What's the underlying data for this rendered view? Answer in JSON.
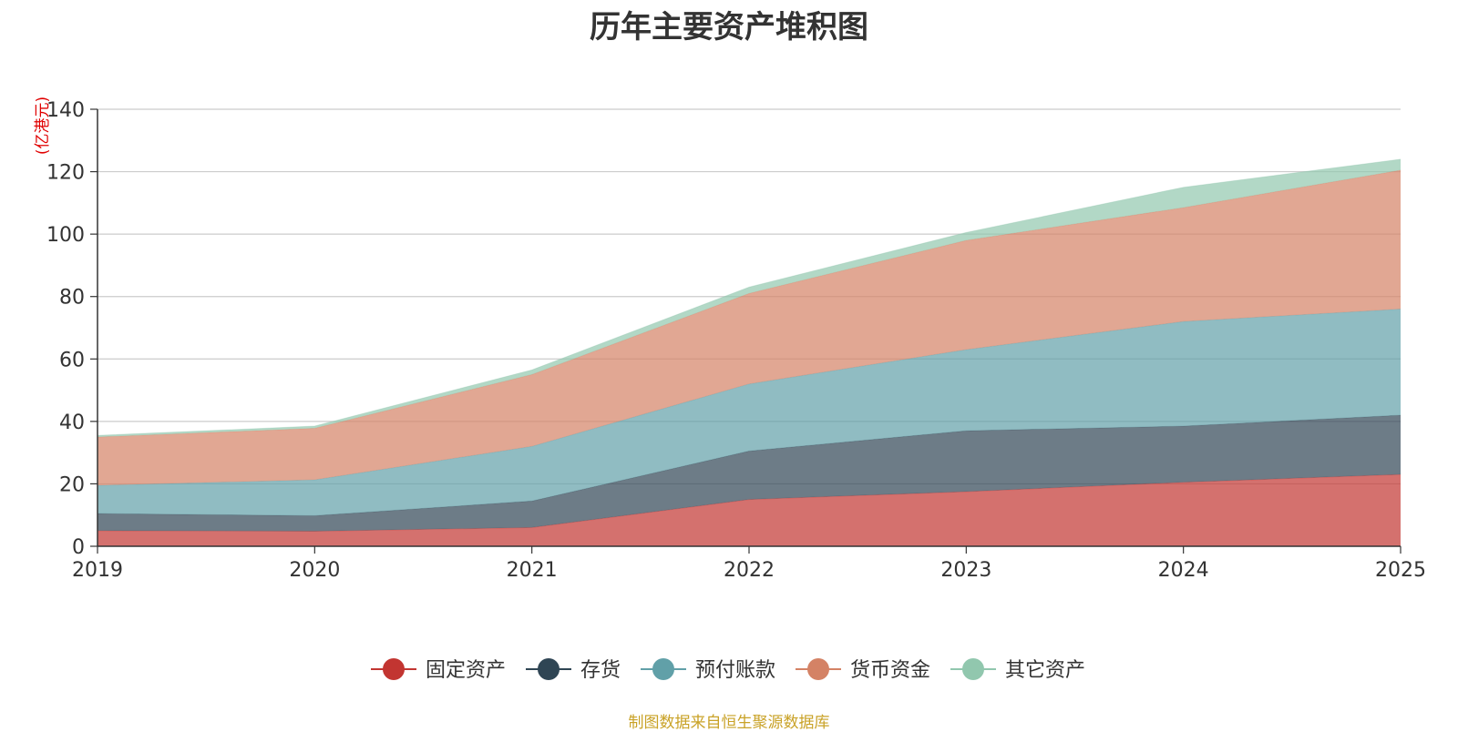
{
  "chart_data": {
    "type": "area",
    "stacked": true,
    "title": "历年主要资产堆积图",
    "ylabel": "(亿港元)",
    "x": [
      "2019",
      "2020",
      "2021",
      "2022",
      "2023",
      "2024",
      "2025"
    ],
    "ylim": [
      0,
      140
    ],
    "yticks": [
      0,
      20,
      40,
      60,
      80,
      100,
      120,
      140
    ],
    "grid": true,
    "legend_position": "bottom",
    "series": [
      {
        "name": "固定资产",
        "color": "#c23531",
        "values": [
          5,
          4.8,
          6,
          15,
          17.5,
          20.5,
          23
        ]
      },
      {
        "name": "存货",
        "color": "#2f4554",
        "values": [
          5.5,
          5,
          8.5,
          15.5,
          19.5,
          18,
          19
        ]
      },
      {
        "name": "预付账款",
        "color": "#61a0a8",
        "values": [
          9,
          11.5,
          17.5,
          21.5,
          26,
          33.5,
          34
        ]
      },
      {
        "name": "货币资金",
        "color": "#d48265",
        "values": [
          15.5,
          16.5,
          23,
          29,
          35,
          36.5,
          44.5
        ]
      },
      {
        "name": "其它资产",
        "color": "#91c7ae",
        "values": [
          0.5,
          0.7,
          1.5,
          2,
          2.5,
          6.5,
          3.5
        ]
      }
    ],
    "source_note": "制图数据来自恒生聚源数据库",
    "source_note_color": "#c9a227",
    "unit_color": "#e00000"
  }
}
